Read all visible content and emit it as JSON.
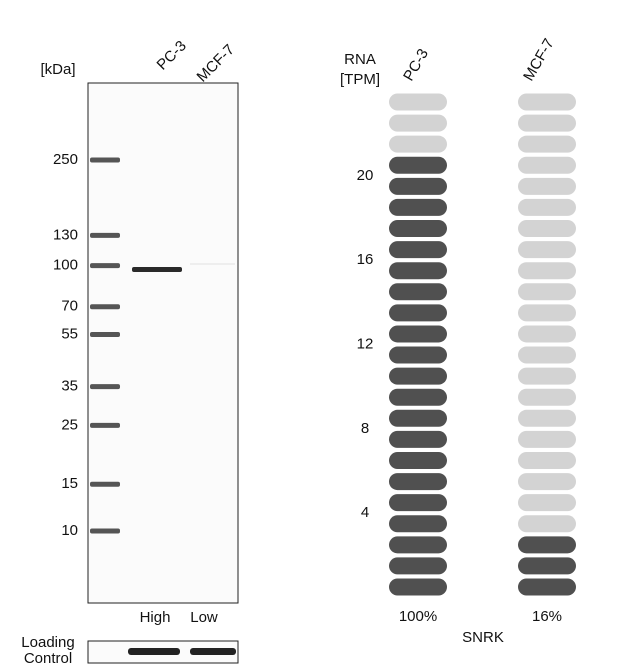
{
  "blot": {
    "unit": "[kDa]",
    "lanes": [
      "PC-3",
      "MCF-7"
    ],
    "markers": [
      250,
      130,
      100,
      70,
      55,
      35,
      25,
      15,
      10
    ],
    "lane_levels": [
      "High",
      "Low"
    ],
    "loading_label": [
      "Loading",
      "Control"
    ]
  },
  "rna": {
    "header": [
      "RNA",
      "[TPM]"
    ],
    "ticks": [
      4,
      8,
      12,
      16,
      20
    ],
    "total_tiles": 24,
    "columns": [
      {
        "name": "PC-3",
        "filled": 21,
        "label": "100%"
      },
      {
        "name": "MCF-7",
        "filled": 3,
        "label": "16%"
      }
    ],
    "gene": "SNRK",
    "dark_color": "#505050",
    "light_color": "#d3d3d3"
  }
}
